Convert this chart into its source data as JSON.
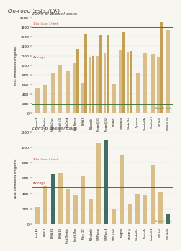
{
  "title_main": "On-road tests (UK)",
  "chart1_title": "Euro 5 diesel cars",
  "chart2_title": "Euro 6 diesel cars",
  "ylabel": "NOx emissions (mg/km)",
  "euro5_labels": [
    "Citroen C4",
    "Ford Mondeo",
    "Honda Civic",
    "Hyundai i30",
    "Kia Ceed",
    "Alfa Romeo",
    "BMW 3",
    "Mitsubishi",
    "Nissan Q L1",
    "Nissan Q L2",
    "Renault",
    "Seat Ibiza",
    "Skoda Oct",
    "Toyota Av",
    "Vauxhall A",
    "Vauxhall I",
    "VW Golf",
    "VW Golf GO"
  ],
  "euro5_bar1": [
    530,
    580,
    820,
    1000,
    880,
    1050,
    620,
    1180,
    1200,
    1250,
    610,
    1310,
    1280,
    840,
    1260,
    1230,
    1160,
    1720
  ],
  "euro5_bar2": [
    0,
    0,
    0,
    0,
    0,
    1350,
    1640,
    1200,
    1620,
    1620,
    0,
    1700,
    1300,
    0,
    0,
    0,
    1900,
    0
  ],
  "euro5_ylim": [
    0,
    2000
  ],
  "euro5_yticks": [
    0,
    200,
    400,
    600,
    800,
    1000,
    1200,
    1400,
    1600,
    1800,
    2000
  ],
  "euro5_green_line": 180,
  "euro5_red_line": 1800,
  "euro5_avg_line": 1100,
  "euro6_labels": [
    "Audi A3",
    "BMW 3",
    "BMW X5",
    "BMW 25",
    "Ford Mondeo",
    "Ford S-Max",
    "Merc CDT",
    "Mitsubishi",
    "VW Passat",
    "VW Pass B",
    "Merc C220",
    "Peugeot",
    "Nissan Q",
    "Skoda Oct",
    "Toyota Av",
    "Vauxhall A",
    "VW Golf",
    "VW Golf2"
  ],
  "euro6_bar1": [
    220,
    490,
    660,
    670,
    460,
    380,
    620,
    320,
    1050,
    1090,
    200,
    900,
    260,
    400,
    380,
    770,
    420,
    130
  ],
  "euro6_dark_bars": [
    2,
    9,
    17
  ],
  "euro6_ylim": [
    0,
    1200
  ],
  "euro6_yticks": [
    0,
    200,
    400,
    600,
    800,
    1000,
    1200
  ],
  "euro6_green_line": 80,
  "euro6_red_line": 800,
  "euro6_avg_line": 480,
  "col_tan_light": "#d9be8a",
  "col_tan_dark": "#c4a055",
  "col_teal": "#3d7060",
  "col_red": "#c0392b",
  "col_green": "#4a7a3a",
  "col_avg": "#c0392b",
  "col_bg": "#f7f6f1",
  "col_grid": "#d5d5d5"
}
